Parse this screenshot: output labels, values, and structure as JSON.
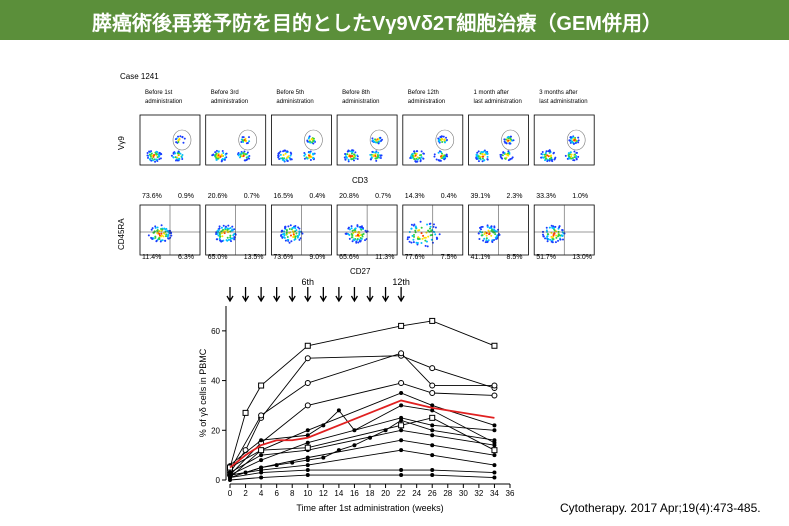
{
  "slide": {
    "title": "膵癌術後再発予防を目的としたVγ9Vδ2T細胞治療（GEM併用）",
    "citation": "Cytotherapy. 2017 Apr;19(4):473-485."
  },
  "flow": {
    "case": "Case 1241",
    "columns": [
      [
        "Before 1st",
        "administration"
      ],
      [
        "Before 3rd",
        "administration"
      ],
      [
        "Before 5th",
        "administration"
      ],
      [
        "Before 8th",
        "administration"
      ],
      [
        "Before 12th",
        "administration"
      ],
      [
        "1 month after",
        "last administration"
      ],
      [
        "3 months after",
        "last administration"
      ]
    ],
    "row1_y_label": "Vγ9",
    "row1_x_label": "CD3",
    "row2_y_label": "CD45RA",
    "row2_x_label": "CD27",
    "row2_percentages": [
      [
        "73.6%",
        "0.9%",
        "11.4%",
        "6.3%"
      ],
      [
        "20.6%",
        "0.7%",
        "65.0%",
        "13.5%"
      ],
      [
        "16.5%",
        "0.4%",
        "73.6%",
        "9.0%"
      ],
      [
        "20.8%",
        "0.7%",
        "65.6%",
        "11.3%"
      ],
      [
        "14.3%",
        "0.4%",
        "77.6%",
        "7.5%"
      ],
      [
        "39.1%",
        "2.3%",
        "41.1%",
        "8.5%"
      ],
      [
        "33.3%",
        "1.0%",
        "51.7%",
        "13.0%"
      ]
    ]
  },
  "chart_data": {
    "type": "line",
    "x_label": "Time after 1st administration (weeks)",
    "y_label": "% of γδ cells in PBMC",
    "xlim": [
      0,
      36
    ],
    "ylim": [
      0,
      70
    ],
    "xticks": [
      0,
      2,
      4,
      6,
      8,
      10,
      12,
      14,
      16,
      18,
      20,
      22,
      24,
      26,
      28,
      30,
      32,
      34,
      36
    ],
    "yticks": [
      0,
      20,
      40,
      60
    ],
    "dose_weeks": [
      0,
      2,
      4,
      6,
      8,
      10,
      12,
      14,
      16,
      18,
      20,
      22
    ],
    "dose_labels": [
      {
        "week": 10,
        "label": "6th"
      },
      {
        "week": 22,
        "label": "12th"
      }
    ],
    "series": [
      {
        "color": "#000000",
        "marker": "square",
        "x": [
          0,
          2,
          4,
          10,
          22,
          26,
          34
        ],
        "values": [
          5,
          27,
          38,
          54,
          62,
          64,
          54
        ]
      },
      {
        "color": "#000000",
        "marker": "circle",
        "x": [
          0,
          2,
          4,
          10,
          22,
          26,
          34
        ],
        "values": [
          3,
          12,
          25,
          49,
          50,
          45,
          37
        ]
      },
      {
        "color": "#000000",
        "marker": "circle",
        "x": [
          0,
          4,
          10,
          22,
          26,
          34
        ],
        "values": [
          4,
          26,
          39,
          51,
          38,
          38
        ]
      },
      {
        "color": "#000000",
        "marker": "circle",
        "x": [
          0,
          4,
          10,
          22,
          26,
          34
        ],
        "values": [
          2,
          15,
          30,
          39,
          35,
          34
        ]
      },
      {
        "color": "#000000",
        "marker": "dot",
        "x": [
          0,
          4,
          10,
          22,
          26,
          34
        ],
        "values": [
          1,
          12,
          20,
          35,
          30,
          22
        ]
      },
      {
        "color": "#000000",
        "marker": "dot",
        "x": [
          0,
          4,
          10,
          12,
          14,
          16,
          22,
          26,
          34
        ],
        "values": [
          6,
          16,
          18,
          22,
          28,
          20,
          30,
          28,
          15
        ]
      },
      {
        "color": "#000000",
        "marker": "dot",
        "x": [
          0,
          4,
          10,
          22,
          26,
          34
        ],
        "values": [
          2,
          8,
          15,
          25,
          22,
          20
        ]
      },
      {
        "color": "#000000",
        "marker": "dot",
        "x": [
          0,
          4,
          10,
          22,
          26,
          34
        ],
        "values": [
          3,
          10,
          12,
          20,
          18,
          14
        ]
      },
      {
        "color": "#000000",
        "marker": "dot",
        "x": [
          0,
          4,
          10,
          22,
          26,
          34
        ],
        "values": [
          1,
          5,
          9,
          16,
          14,
          10
        ]
      },
      {
        "color": "#000000",
        "marker": "dot",
        "x": [
          0,
          4,
          10,
          22,
          26,
          34
        ],
        "values": [
          2,
          4,
          6,
          12,
          10,
          6
        ]
      },
      {
        "color": "#000000",
        "marker": "dot",
        "x": [
          0,
          4,
          10,
          22,
          26,
          34
        ],
        "values": [
          1,
          3,
          4,
          4,
          4,
          3
        ]
      },
      {
        "color": "#000000",
        "marker": "dot",
        "x": [
          0,
          4,
          10,
          22,
          26,
          34
        ],
        "values": [
          0,
          1,
          2,
          2,
          2,
          1
        ]
      },
      {
        "color": "#000000",
        "marker": "dot",
        "x": [
          0,
          2,
          4,
          6,
          8,
          10,
          12,
          14,
          16,
          18,
          20,
          22,
          26,
          34
        ],
        "values": [
          2,
          3,
          5,
          6,
          7,
          8,
          9,
          12,
          14,
          17,
          20,
          24,
          20,
          16
        ]
      },
      {
        "color": "#000000",
        "marker": "square",
        "x": [
          0,
          4,
          10,
          22,
          26,
          34
        ],
        "values": [
          5,
          12,
          13,
          22,
          25,
          12
        ]
      },
      {
        "color": "#e02020",
        "marker": "none",
        "x": [
          0,
          2,
          4,
          6,
          8,
          10,
          22,
          26,
          34
        ],
        "values": [
          5,
          10,
          14,
          16,
          16,
          17,
          32,
          29,
          25
        ]
      }
    ]
  }
}
